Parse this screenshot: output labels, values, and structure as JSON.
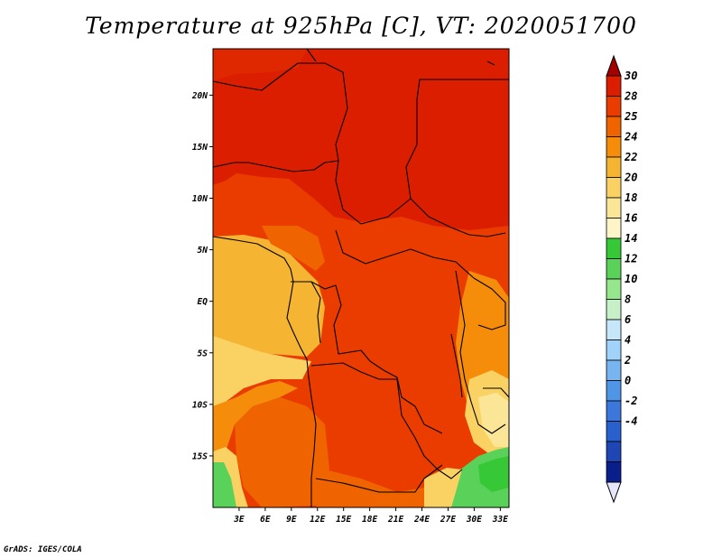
{
  "title": "Temperature at 925hPa [C], VT: 2020051700",
  "credit": "GrADS: IGES/COLA",
  "map": {
    "lon_range": [
      0,
      34
    ],
    "lat_range": [
      -20,
      24.5
    ],
    "lat_ticks": [
      {
        "value": 20,
        "label": "20N"
      },
      {
        "value": 15,
        "label": "15N"
      },
      {
        "value": 10,
        "label": "10N"
      },
      {
        "value": 5,
        "label": "5N"
      },
      {
        "value": 0,
        "label": "EQ"
      },
      {
        "value": -5,
        "label": "5S"
      },
      {
        "value": -10,
        "label": "10S"
      },
      {
        "value": -15,
        "label": "15S"
      }
    ],
    "lon_ticks": [
      {
        "value": 3,
        "label": "3E"
      },
      {
        "value": 6,
        "label": "6E"
      },
      {
        "value": 9,
        "label": "9E"
      },
      {
        "value": 12,
        "label": "12E"
      },
      {
        "value": 15,
        "label": "15E"
      },
      {
        "value": 18,
        "label": "18E"
      },
      {
        "value": 21,
        "label": "21E"
      },
      {
        "value": 24,
        "label": "24E"
      },
      {
        "value": 27,
        "label": "27E"
      },
      {
        "value": 30,
        "label": "30E"
      },
      {
        "value": 33,
        "label": "33E"
      }
    ]
  },
  "colorbar": {
    "labels": [
      "30",
      "28",
      "25",
      "24",
      "22",
      "20",
      "18",
      "16",
      "14",
      "12",
      "10",
      "8",
      "6",
      "4",
      "2",
      "0",
      "-2",
      "-4"
    ],
    "colors": [
      "#a50000",
      "#dc1e00",
      "#eb3c00",
      "#f06400",
      "#f58c0a",
      "#f5b432",
      "#fad264",
      "#fae696",
      "#fff5c8",
      "#37c837",
      "#5ad25a",
      "#96e68c",
      "#c8f0c8",
      "#c8e6fa",
      "#a0d2fa",
      "#78b4f0",
      "#5096e6",
      "#3c78dc",
      "#2860cd",
      "#1e46b4",
      "#0a1e8c",
      "#e6e6fa"
    ]
  }
}
